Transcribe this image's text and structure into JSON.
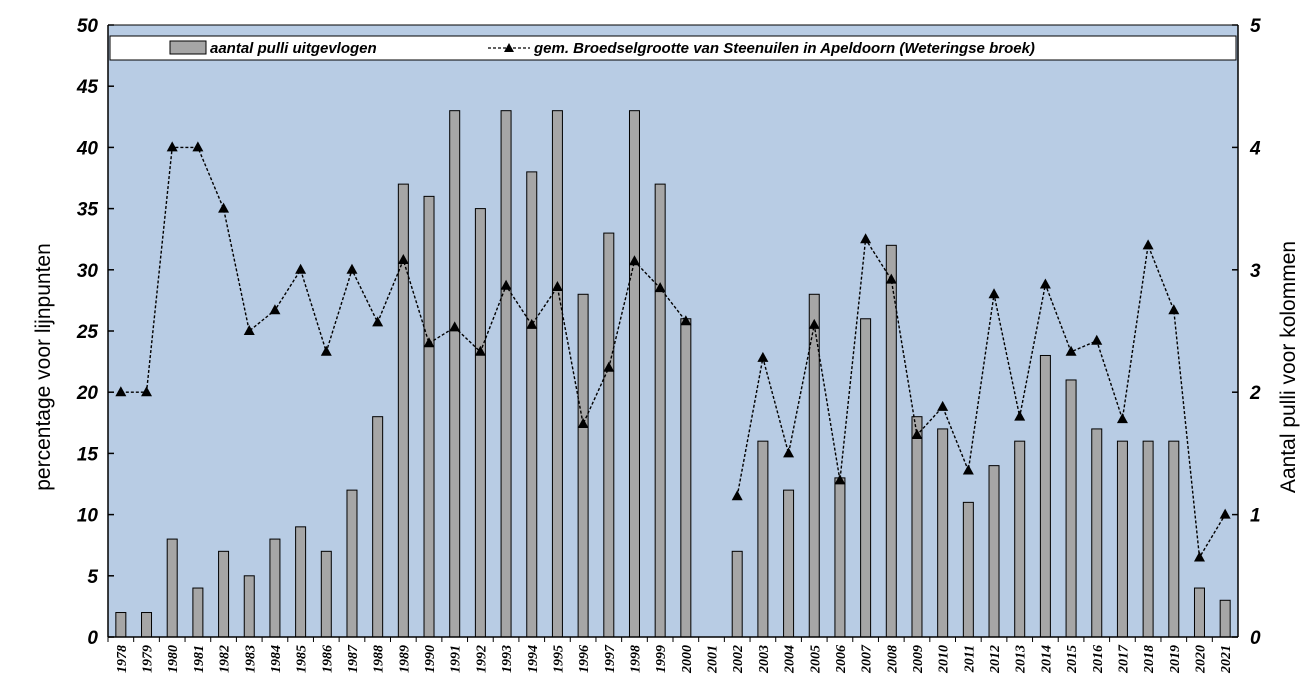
{
  "chart_data": {
    "type": "bar+line",
    "title": "",
    "categories": [
      "1978",
      "1979",
      "1980",
      "1981",
      "1982",
      "1983",
      "1984",
      "1985",
      "1986",
      "1987",
      "1988",
      "1989",
      "1990",
      "1991",
      "1992",
      "1993",
      "1994",
      "1995",
      "1996",
      "1997",
      "1998",
      "1999",
      "2000",
      "2001",
      "2002",
      "2003",
      "2004",
      "2005",
      "2006",
      "2007",
      "2008",
      "2009",
      "2010",
      "2011",
      "2012",
      "2013",
      "2014",
      "2015",
      "2016",
      "2017",
      "2018",
      "2019",
      "2020",
      "2021"
    ],
    "series": [
      {
        "name": "aantal pulli uitgevlogen",
        "kind": "bar",
        "axis": "left",
        "color": "#a6a6a6",
        "values": [
          2,
          2,
          8,
          4,
          7,
          5,
          8,
          9,
          7,
          12,
          18,
          37,
          36,
          43,
          35,
          43,
          38,
          43,
          28,
          33,
          43,
          37,
          26,
          null,
          7,
          16,
          12,
          28,
          13,
          26,
          32,
          18,
          17,
          11,
          14,
          16,
          23,
          21,
          17,
          16,
          16,
          16,
          4,
          3
        ]
      },
      {
        "name": "gem. Broedselgrootte van Steenuilen in Apeldoorn (Weteringse broek)",
        "kind": "line",
        "axis": "left",
        "color": "#000000",
        "values": [
          20,
          20,
          40,
          40,
          35,
          25,
          26.7,
          30,
          23.3,
          30,
          25.7,
          30.8,
          24,
          25.3,
          23.3,
          28.7,
          25.5,
          28.6,
          17.4,
          22,
          30.7,
          28.5,
          25.8,
          null,
          11.5,
          22.8,
          15,
          25.5,
          12.8,
          32.5,
          29.2,
          16.5,
          18.8,
          13.6,
          28,
          18,
          28.8,
          23.3,
          24.2,
          17.8,
          32,
          26.7,
          6.5,
          10
        ]
      }
    ],
    "ylabel_left": "percentage voor lijnpunten",
    "ylabel_right": "Aantal pulli voor kolommen",
    "ylim_left": [
      0,
      50
    ],
    "ylim_right": [
      0,
      5
    ],
    "yticks_left": [
      "0",
      "5",
      "10",
      "15",
      "20",
      "25",
      "30",
      "35",
      "40",
      "45",
      "50"
    ],
    "yticks_right": [
      "0",
      "1",
      "2",
      "3",
      "4",
      "5"
    ],
    "grid": false,
    "legend_position": "top",
    "plot_background": "#b8cce4"
  }
}
